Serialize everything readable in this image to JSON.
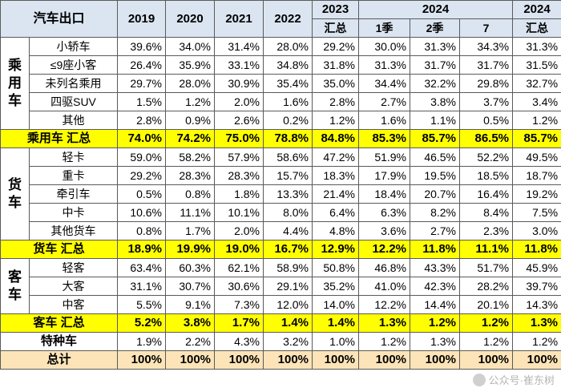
{
  "header": {
    "title": "汽车出口",
    "years": [
      "2019",
      "2020",
      "2021",
      "2022"
    ],
    "y2023_top": "2023",
    "y2023_bottom": "汇总",
    "y2024_span": "2024",
    "q1": "1季",
    "q2": "2季",
    "m7": "7",
    "y2024_top": "2024",
    "y2024_bottom": "汇总"
  },
  "groups": {
    "passenger": [
      "乘",
      "用",
      "车"
    ],
    "truck": [
      "货",
      "车"
    ],
    "bus": [
      "客",
      "车"
    ]
  },
  "rows": {
    "passenger": [
      {
        "name": "小轿车",
        "v": [
          "39.6%",
          "34.0%",
          "31.4%",
          "28.0%",
          "29.2%",
          "30.0%",
          "31.3%",
          "34.3%",
          "31.3%"
        ]
      },
      {
        "name": "≤9座小客",
        "v": [
          "26.4%",
          "35.9%",
          "33.1%",
          "34.8%",
          "31.8%",
          "31.3%",
          "31.7%",
          "31.7%",
          "31.5%"
        ]
      },
      {
        "name": "未列名乘用",
        "v": [
          "29.7%",
          "28.0%",
          "30.9%",
          "35.4%",
          "35.0%",
          "34.4%",
          "32.2%",
          "29.8%",
          "32.7%"
        ]
      },
      {
        "name": "四驱SUV",
        "v": [
          "1.5%",
          "1.2%",
          "2.0%",
          "1.6%",
          "2.8%",
          "2.7%",
          "3.8%",
          "3.7%",
          "3.4%"
        ]
      },
      {
        "name": "其他",
        "v": [
          "2.8%",
          "0.9%",
          "2.6%",
          "0.2%",
          "1.2%",
          "1.6%",
          "1.1%",
          "0.5%",
          "1.2%"
        ]
      }
    ],
    "passenger_total": {
      "name": "乘用车 汇总",
      "v": [
        "74.0%",
        "74.2%",
        "75.0%",
        "78.8%",
        "84.8%",
        "85.3%",
        "85.7%",
        "86.5%",
        "85.7%"
      ]
    },
    "truck": [
      {
        "name": "轻卡",
        "v": [
          "59.0%",
          "58.2%",
          "57.9%",
          "58.6%",
          "47.2%",
          "51.9%",
          "46.5%",
          "52.2%",
          "49.5%"
        ]
      },
      {
        "name": "重卡",
        "v": [
          "29.2%",
          "28.3%",
          "28.3%",
          "15.7%",
          "18.3%",
          "17.9%",
          "19.5%",
          "18.5%",
          "18.7%"
        ]
      },
      {
        "name": "牵引车",
        "v": [
          "0.5%",
          "0.8%",
          "1.8%",
          "13.3%",
          "21.4%",
          "18.4%",
          "20.7%",
          "16.4%",
          "19.2%"
        ]
      },
      {
        "name": "中卡",
        "v": [
          "10.6%",
          "11.1%",
          "10.1%",
          "8.0%",
          "6.4%",
          "6.3%",
          "8.2%",
          "8.4%",
          "7.5%"
        ]
      },
      {
        "name": "其他货车",
        "v": [
          "0.8%",
          "1.7%",
          "2.0%",
          "4.4%",
          "4.8%",
          "3.6%",
          "2.7%",
          "2.3%",
          "3.0%"
        ]
      }
    ],
    "truck_total": {
      "name": "货车 汇总",
      "v": [
        "18.9%",
        "19.9%",
        "19.0%",
        "16.7%",
        "12.9%",
        "12.2%",
        "11.8%",
        "11.1%",
        "11.8%"
      ]
    },
    "bus": [
      {
        "name": "轻客",
        "v": [
          "63.4%",
          "60.3%",
          "62.1%",
          "58.9%",
          "50.8%",
          "46.8%",
          "43.3%",
          "51.7%",
          "45.9%"
        ]
      },
      {
        "name": "大客",
        "v": [
          "31.1%",
          "30.7%",
          "30.6%",
          "29.1%",
          "35.2%",
          "41.0%",
          "42.3%",
          "28.2%",
          "39.7%"
        ]
      },
      {
        "name": "中客",
        "v": [
          "5.5%",
          "9.1%",
          "7.3%",
          "12.0%",
          "14.0%",
          "12.2%",
          "14.4%",
          "20.1%",
          "14.3%"
        ]
      }
    ],
    "bus_total": {
      "name": "客车 汇总",
      "v": [
        "5.2%",
        "3.8%",
        "1.7%",
        "1.4%",
        "1.4%",
        "1.3%",
        "1.2%",
        "1.2%",
        "1.3%"
      ]
    },
    "special": {
      "name": "特种车",
      "v": [
        "1.9%",
        "2.2%",
        "4.3%",
        "3.2%",
        "1.0%",
        "1.2%",
        "1.3%",
        "1.2%",
        "1.2%"
      ]
    },
    "total": {
      "name": "总计",
      "v": [
        "100%",
        "100%",
        "100%",
        "100%",
        "100%",
        "100%",
        "100%",
        "100%",
        "100%"
      ]
    }
  },
  "watermark": "公众号·崔东树",
  "colors": {
    "header_bg": "#dbe5f1",
    "subtotal_bg": "#ffff00",
    "total_bg": "#fce4b8",
    "border": "#5a5a5a"
  }
}
